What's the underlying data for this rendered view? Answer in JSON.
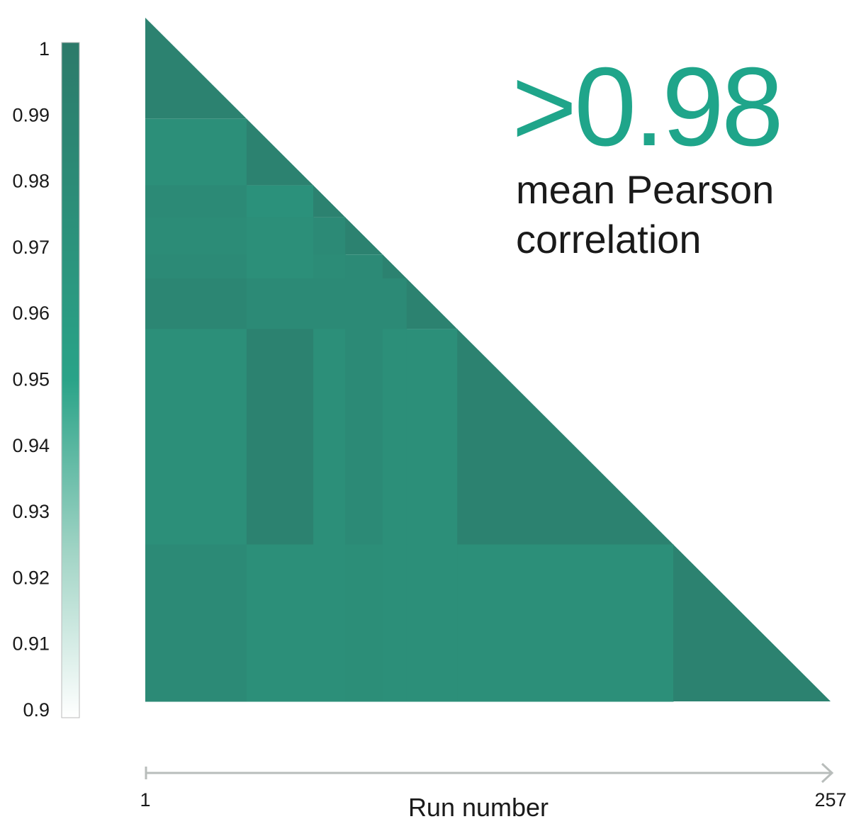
{
  "headline": {
    "value": ">0.98",
    "line1": "mean Pearson",
    "line2": "correlation",
    "color": "#1fa58a"
  },
  "chart_data": {
    "type": "heatmap",
    "description_shape": "lower-triangular correlation matrix",
    "xlabel": "Run number",
    "x_range": [
      1,
      257
    ],
    "x_tick_labels": [
      "1",
      "257"
    ],
    "colorbar": {
      "range": [
        0.9,
        1
      ],
      "tick_labels": [
        "1",
        "0.99",
        "0.98",
        "0.97",
        "0.96",
        "0.95",
        "0.94",
        "0.93",
        "0.92",
        "0.91",
        "0.9"
      ],
      "tick_values": [
        1,
        0.99,
        0.98,
        0.97,
        0.96,
        0.95,
        0.94,
        0.93,
        0.92,
        0.91,
        0.9
      ],
      "colors": {
        "high": "#2d7a6a",
        "mid": "#2aa388",
        "low": "#ffffff"
      }
    },
    "group_boundaries_runs": [
      1,
      39,
      64,
      76,
      90,
      99,
      118,
      199,
      258
    ],
    "block_values": [
      [
        0.99
      ],
      [
        0.975,
        0.99
      ],
      [
        0.98,
        0.972,
        0.99
      ],
      [
        0.978,
        0.975,
        0.98,
        0.99
      ],
      [
        0.98,
        0.975,
        0.978,
        0.98,
        0.99
      ],
      [
        0.985,
        0.98,
        0.98,
        0.98,
        0.98,
        0.99
      ],
      [
        0.975,
        0.99,
        0.975,
        0.98,
        0.975,
        0.975,
        0.99
      ],
      [
        0.98,
        0.975,
        0.975,
        0.976,
        0.975,
        0.975,
        0.975,
        0.99
      ]
    ]
  }
}
